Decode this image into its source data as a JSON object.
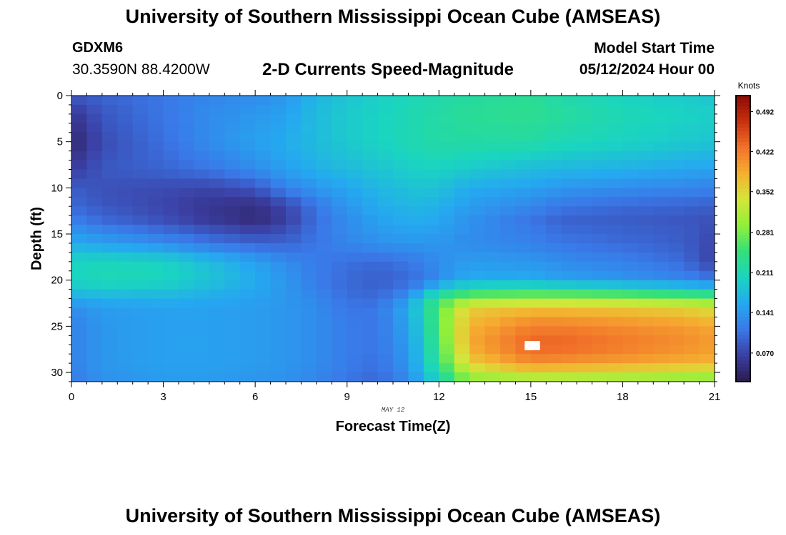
{
  "header": {
    "title": "University of Southern Mississippi Ocean Cube (AMSEAS)",
    "station_id": "GDXM6",
    "coords": "30.3590N  88.4200W",
    "subtitle": "2-D Currents Speed-Magnitude",
    "start_label": "Model Start Time",
    "start_value": "05/12/2024 Hour 00"
  },
  "footer": {
    "title": "University of Southern Mississippi Ocean Cube (AMSEAS)"
  },
  "chart_data": {
    "type": "heatmap",
    "title": "2-D Currents Speed-Magnitude",
    "xlabel": "Forecast Time(Z)",
    "ylabel": "Depth (ft)",
    "x_annotation": "MAY 12",
    "xlim": [
      0,
      21
    ],
    "ylim": [
      0,
      31
    ],
    "x_ticks": [
      0,
      3,
      6,
      9,
      12,
      15,
      18,
      21
    ],
    "y_ticks": [
      0,
      5,
      10,
      15,
      20,
      25,
      30
    ],
    "y_inverted": true,
    "colorbar_label": "Knots",
    "colorbar_ticks": [
      "0.070",
      "0.141",
      "0.211",
      "0.281",
      "0.352",
      "0.422",
      "0.492"
    ],
    "colorbar_range": [
      0.02,
      0.52
    ],
    "colors": {
      "cmap": [
        "#2b1a4f",
        "#3b3fa3",
        "#3a78e8",
        "#25a8f0",
        "#1ad5c0",
        "#34e07a",
        "#90ef3a",
        "#d4e63a",
        "#f5b030",
        "#f2722a",
        "#c8300f",
        "#8b0a04"
      ]
    },
    "value_field": {
      "description": "Speed magnitude (knots) estimated at anchor points; rendered as a grid of cells",
      "time_points": [
        0,
        1,
        3,
        4.5,
        6,
        7,
        8,
        9,
        10,
        11,
        11.5,
        12,
        12.5,
        13,
        15,
        16,
        18,
        20,
        21
      ],
      "depth_points": [
        0,
        2,
        5,
        8,
        10,
        12,
        13.5,
        16,
        18,
        20,
        21,
        22,
        23,
        25,
        27,
        29,
        30.5,
        31
      ],
      "values": [
        [
          0.085,
          0.095,
          0.11,
          0.125,
          0.13,
          0.14,
          0.17,
          0.185,
          0.195,
          0.205,
          0.21,
          0.215,
          0.22,
          0.22,
          0.23,
          0.215,
          0.2,
          0.19,
          0.185
        ],
        [
          0.055,
          0.085,
          0.11,
          0.13,
          0.14,
          0.15,
          0.175,
          0.19,
          0.2,
          0.21,
          0.215,
          0.22,
          0.225,
          0.23,
          0.235,
          0.225,
          0.21,
          0.2,
          0.195
        ],
        [
          0.035,
          0.075,
          0.105,
          0.13,
          0.15,
          0.16,
          0.175,
          0.19,
          0.2,
          0.21,
          0.215,
          0.22,
          0.22,
          0.22,
          0.22,
          0.21,
          0.2,
          0.19,
          0.185
        ],
        [
          0.06,
          0.085,
          0.095,
          0.11,
          0.13,
          0.15,
          0.165,
          0.175,
          0.185,
          0.195,
          0.2,
          0.2,
          0.195,
          0.19,
          0.175,
          0.17,
          0.165,
          0.155,
          0.15
        ],
        [
          0.09,
          0.08,
          0.075,
          0.07,
          0.085,
          0.12,
          0.14,
          0.155,
          0.17,
          0.18,
          0.185,
          0.18,
          0.17,
          0.16,
          0.15,
          0.14,
          0.13,
          0.125,
          0.12
        ],
        [
          0.1,
          0.085,
          0.07,
          0.055,
          0.045,
          0.07,
          0.11,
          0.14,
          0.16,
          0.17,
          0.17,
          0.165,
          0.155,
          0.145,
          0.125,
          0.11,
          0.1,
          0.095,
          0.09
        ],
        [
          0.12,
          0.1,
          0.08,
          0.06,
          0.045,
          0.065,
          0.105,
          0.13,
          0.15,
          0.16,
          0.16,
          0.155,
          0.145,
          0.135,
          0.11,
          0.095,
          0.09,
          0.085,
          0.08
        ],
        [
          0.16,
          0.15,
          0.13,
          0.11,
          0.095,
          0.095,
          0.11,
          0.125,
          0.135,
          0.14,
          0.14,
          0.14,
          0.135,
          0.13,
          0.12,
          0.11,
          0.1,
          0.09,
          0.07
        ],
        [
          0.2,
          0.205,
          0.2,
          0.175,
          0.15,
          0.13,
          0.115,
          0.105,
          0.1,
          0.11,
          0.12,
          0.13,
          0.14,
          0.145,
          0.14,
          0.13,
          0.12,
          0.1,
          0.065
        ],
        [
          0.2,
          0.21,
          0.205,
          0.185,
          0.16,
          0.14,
          0.115,
          0.1,
          0.09,
          0.1,
          0.11,
          0.13,
          0.15,
          0.16,
          0.16,
          0.15,
          0.14,
          0.125,
          0.11
        ],
        [
          0.185,
          0.19,
          0.185,
          0.17,
          0.155,
          0.14,
          0.12,
          0.1,
          0.095,
          0.115,
          0.15,
          0.19,
          0.21,
          0.225,
          0.23,
          0.225,
          0.215,
          0.2,
          0.19
        ],
        [
          0.155,
          0.165,
          0.165,
          0.16,
          0.15,
          0.14,
          0.125,
          0.105,
          0.1,
          0.14,
          0.2,
          0.24,
          0.27,
          0.29,
          0.3,
          0.3,
          0.295,
          0.28,
          0.27
        ],
        [
          0.13,
          0.145,
          0.15,
          0.15,
          0.145,
          0.14,
          0.13,
          0.11,
          0.11,
          0.16,
          0.21,
          0.26,
          0.32,
          0.36,
          0.37,
          0.37,
          0.365,
          0.355,
          0.34
        ],
        [
          0.12,
          0.14,
          0.15,
          0.15,
          0.145,
          0.14,
          0.13,
          0.115,
          0.11,
          0.15,
          0.2,
          0.26,
          0.33,
          0.38,
          0.42,
          0.42,
          0.41,
          0.4,
          0.39
        ],
        [
          0.12,
          0.14,
          0.15,
          0.15,
          0.145,
          0.14,
          0.13,
          0.115,
          0.11,
          0.145,
          0.19,
          0.255,
          0.32,
          0.39,
          0.44,
          0.44,
          0.425,
          0.41,
          0.4
        ],
        [
          0.12,
          0.14,
          0.15,
          0.15,
          0.145,
          0.14,
          0.13,
          0.115,
          0.105,
          0.14,
          0.185,
          0.24,
          0.3,
          0.36,
          0.41,
          0.405,
          0.395,
          0.385,
          0.38
        ],
        [
          0.115,
          0.135,
          0.145,
          0.145,
          0.14,
          0.135,
          0.125,
          0.11,
          0.1,
          0.13,
          0.17,
          0.21,
          0.26,
          0.3,
          0.32,
          0.32,
          0.315,
          0.305,
          0.3
        ],
        [
          0.11,
          0.13,
          0.14,
          0.14,
          0.135,
          0.13,
          0.12,
          0.105,
          0.1,
          0.125,
          0.16,
          0.2,
          0.24,
          0.27,
          0.29,
          0.29,
          0.285,
          0.28,
          0.275
        ]
      ]
    }
  }
}
